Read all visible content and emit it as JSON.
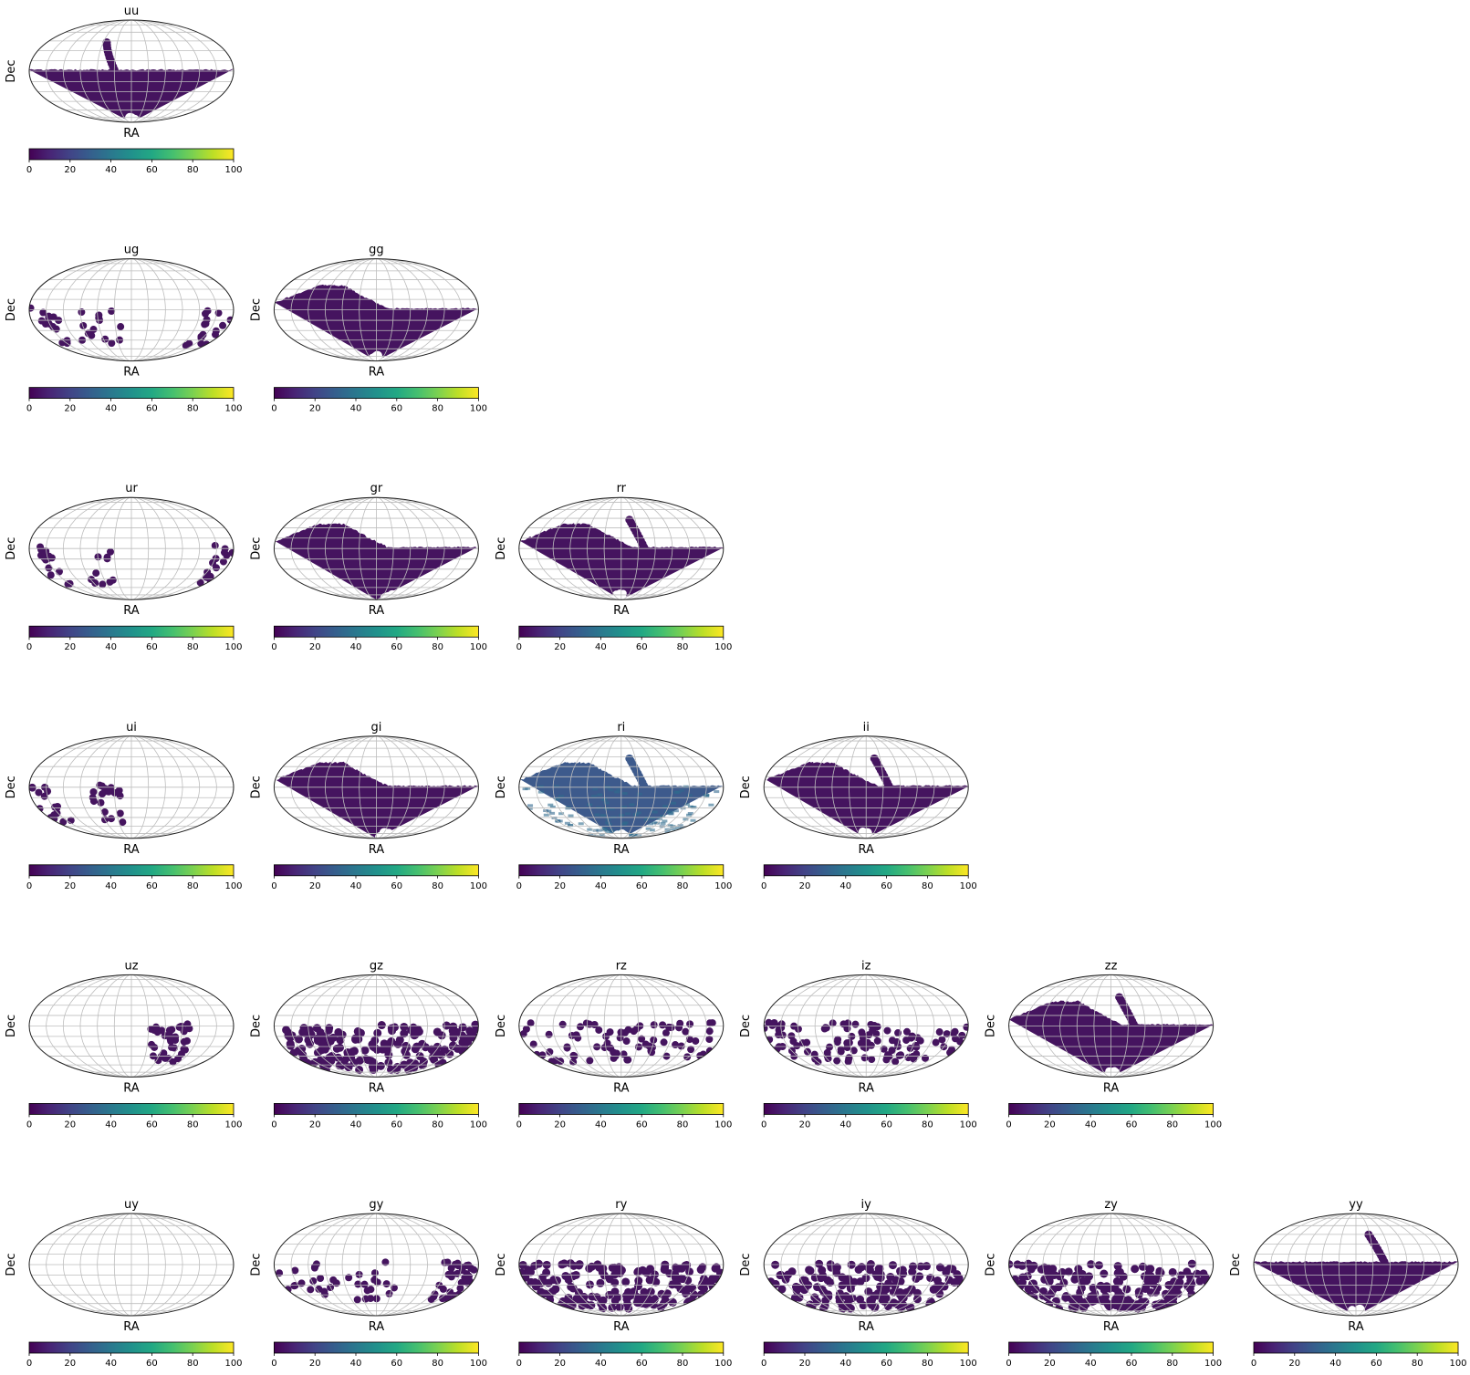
{
  "chart_data": {
    "type": "heatmap",
    "projection": "mollweide",
    "layout": "lower-triangular grid, 6 rows",
    "xlabel": "RA",
    "ylabel": "Dec",
    "colormap": "viridis",
    "colorbar": {
      "range": [
        0,
        100
      ],
      "ticks": [
        "0",
        "20",
        "40",
        "60",
        "80",
        "100"
      ]
    },
    "grid": true,
    "colors": {
      "background_fill": "#45145f",
      "mid_fill": "#3b528b",
      "frame": "#222222",
      "grid": "#bdbdbd"
    },
    "panels": [
      {
        "title": "uu",
        "row": 0,
        "col": 0,
        "coverage": "band-north-spur",
        "dec_limit": 2,
        "scatter_seed": 0,
        "spur_ra": -30
      },
      {
        "title": "ug",
        "row": 1,
        "col": 0,
        "coverage": "blobs",
        "blob_count": 45,
        "scatter_seed": 11,
        "ra_zones": [
          [
            -180,
            -130
          ],
          [
            -110,
            -20
          ],
          [
            130,
            180
          ]
        ]
      },
      {
        "title": "gg",
        "row": 1,
        "col": 1,
        "coverage": "band-north-wedge",
        "dec_limit": 2,
        "scatter_seed": 2
      },
      {
        "title": "ur",
        "row": 2,
        "col": 0,
        "coverage": "blobs",
        "blob_count": 40,
        "scatter_seed": 21,
        "ra_zones": [
          [
            -180,
            -140
          ],
          [
            -90,
            -30
          ],
          [
            140,
            180
          ]
        ]
      },
      {
        "title": "gr",
        "row": 2,
        "col": 1,
        "coverage": "band-north-wedge",
        "dec_limit": 2,
        "scatter_seed": 3,
        "gap_ra": 60
      },
      {
        "title": "rr",
        "row": 2,
        "col": 2,
        "coverage": "band-north-wedge-spur",
        "dec_limit": 2,
        "scatter_seed": 4,
        "spur_ra": 40
      },
      {
        "title": "ui",
        "row": 3,
        "col": 0,
        "coverage": "blobs",
        "blob_count": 35,
        "scatter_seed": 31,
        "ra_zones": [
          [
            -180,
            -135
          ],
          [
            -70,
            -20
          ]
        ]
      },
      {
        "title": "gi",
        "row": 3,
        "col": 1,
        "coverage": "band-north-wedge",
        "dec_limit": 2,
        "scatter_seed": 5,
        "gap_ra": 40
      },
      {
        "title": "ri",
        "row": 3,
        "col": 2,
        "coverage": "band-north-wedge-spur",
        "dec_limit": 2,
        "scatter_seed": 6,
        "spur_ra": 40,
        "intensity": "mid"
      },
      {
        "title": "ii",
        "row": 3,
        "col": 3,
        "coverage": "band-north-wedge-spur",
        "dec_limit": 2,
        "scatter_seed": 7,
        "spur_ra": 40
      },
      {
        "title": "uz",
        "row": 4,
        "col": 0,
        "coverage": "blobs",
        "blob_count": 40,
        "scatter_seed": 41,
        "ra_zones": [
          [
            30,
            110
          ]
        ]
      },
      {
        "title": "gz",
        "row": 4,
        "col": 1,
        "coverage": "blobs-dense",
        "blob_count": 170,
        "scatter_seed": 42,
        "ra_zones": [
          [
            -180,
            180
          ]
        ]
      },
      {
        "title": "rz",
        "row": 4,
        "col": 2,
        "coverage": "blobs",
        "blob_count": 80,
        "scatter_seed": 43,
        "ra_zones": [
          [
            -180,
            180
          ]
        ]
      },
      {
        "title": "iz",
        "row": 4,
        "col": 3,
        "coverage": "blobs",
        "blob_count": 110,
        "scatter_seed": 44,
        "ra_zones": [
          [
            -180,
            180
          ]
        ]
      },
      {
        "title": "zz",
        "row": 4,
        "col": 4,
        "coverage": "band-north-wedge-spur",
        "dec_limit": 2,
        "scatter_seed": 8,
        "spur_ra": 40
      },
      {
        "title": "uy",
        "row": 5,
        "col": 0,
        "coverage": "empty"
      },
      {
        "title": "gy",
        "row": 5,
        "col": 1,
        "coverage": "blobs",
        "blob_count": 70,
        "scatter_seed": 51,
        "ra_zones": [
          [
            -180,
            40
          ],
          [
            120,
            180
          ]
        ]
      },
      {
        "title": "ry",
        "row": 5,
        "col": 2,
        "coverage": "blobs-dense",
        "blob_count": 170,
        "scatter_seed": 52,
        "ra_zones": [
          [
            -180,
            180
          ]
        ]
      },
      {
        "title": "iy",
        "row": 5,
        "col": 3,
        "coverage": "blobs-dense",
        "blob_count": 160,
        "scatter_seed": 53,
        "ra_zones": [
          [
            -180,
            180
          ]
        ]
      },
      {
        "title": "zy",
        "row": 5,
        "col": 4,
        "coverage": "blobs-dense",
        "blob_count": 190,
        "scatter_seed": 54,
        "ra_zones": [
          [
            -180,
            180
          ]
        ]
      },
      {
        "title": "yy",
        "row": 5,
        "col": 5,
        "coverage": "band-spur",
        "dec_limit": 4,
        "scatter_seed": 9,
        "spur_ra": 50
      }
    ]
  }
}
